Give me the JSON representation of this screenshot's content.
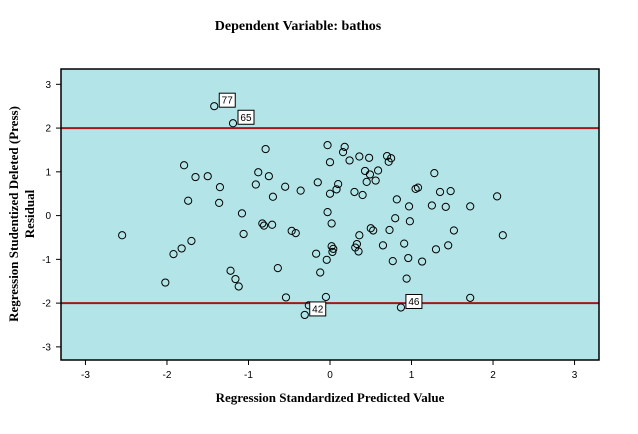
{
  "chart_data": {
    "type": "scatter",
    "title": "Dependent Variable: bathos",
    "xlabel": "Regression Standardized Predicted Value",
    "ylabel_lines": [
      "Regression Studentized Deleted (Press)",
      "Residual"
    ],
    "xlim": [
      -3.3,
      3.3
    ],
    "ylim": [
      -3.3,
      3.35
    ],
    "xticks": [
      -3,
      -2,
      -1,
      0,
      1,
      2,
      3
    ],
    "yticks": [
      3,
      2,
      1,
      0,
      -1,
      -2,
      -3
    ],
    "grid": false,
    "reference_lines": [
      2,
      -2
    ],
    "colors": {
      "plot_bg": "#b3e5e8",
      "reference_line": "#a01818",
      "marker_stroke": "#000000",
      "frame": "#000000"
    },
    "points": [
      [
        -2.55,
        -0.45
      ],
      [
        -2.02,
        -1.53
      ],
      [
        -1.92,
        -0.88
      ],
      [
        -1.82,
        -0.75
      ],
      [
        -1.79,
        1.15
      ],
      [
        -1.74,
        0.34
      ],
      [
        -1.7,
        -0.58
      ],
      [
        -1.65,
        0.88
      ],
      [
        -1.5,
        0.9
      ],
      [
        -1.35,
        0.65
      ],
      [
        -1.36,
        0.29
      ],
      [
        -1.22,
        -1.26
      ],
      [
        -1.16,
        -1.45
      ],
      [
        -1.12,
        -1.62
      ],
      [
        -1.08,
        0.05
      ],
      [
        -1.06,
        -0.42
      ],
      [
        -0.91,
        0.71
      ],
      [
        -0.88,
        0.99
      ],
      [
        -0.83,
        -0.18
      ],
      [
        -0.81,
        -0.23
      ],
      [
        -0.79,
        1.52
      ],
      [
        -0.75,
        0.9
      ],
      [
        -0.71,
        -0.21
      ],
      [
        -0.7,
        0.43
      ],
      [
        -0.64,
        -1.2
      ],
      [
        -0.55,
        0.66
      ],
      [
        -0.54,
        -1.87
      ],
      [
        -0.47,
        -0.35
      ],
      [
        -0.42,
        -0.4
      ],
      [
        -0.36,
        0.57
      ],
      [
        -0.31,
        -2.27
      ],
      [
        -0.26,
        -2.05
      ],
      [
        -0.17,
        -0.87
      ],
      [
        -0.15,
        0.76
      ],
      [
        -0.12,
        -1.3
      ],
      [
        -0.05,
        -1.86
      ],
      [
        -0.04,
        -1.01
      ],
      [
        -0.03,
        1.61
      ],
      [
        -0.03,
        0.08
      ],
      [
        0.0,
        1.22
      ],
      [
        0.0,
        0.5
      ],
      [
        0.02,
        -0.18
      ],
      [
        0.02,
        -0.7
      ],
      [
        0.03,
        -0.83
      ],
      [
        0.04,
        -0.76
      ],
      [
        0.08,
        0.6
      ],
      [
        0.1,
        0.72
      ],
      [
        0.16,
        1.45
      ],
      [
        0.18,
        1.57
      ],
      [
        0.24,
        1.26
      ],
      [
        0.3,
        0.54
      ],
      [
        0.31,
        -0.73
      ],
      [
        0.33,
        -0.65
      ],
      [
        0.35,
        -0.82
      ],
      [
        0.36,
        1.35
      ],
      [
        0.36,
        -0.45
      ],
      [
        0.4,
        0.47
      ],
      [
        0.43,
        1.02
      ],
      [
        0.45,
        0.77
      ],
      [
        0.48,
        1.32
      ],
      [
        0.49,
        0.94
      ],
      [
        0.5,
        -0.29
      ],
      [
        0.53,
        -0.34
      ],
      [
        0.56,
        0.8
      ],
      [
        0.59,
        1.03
      ],
      [
        0.65,
        -0.68
      ],
      [
        0.7,
        1.36
      ],
      [
        0.72,
        1.23
      ],
      [
        0.73,
        -0.33
      ],
      [
        0.75,
        1.31
      ],
      [
        0.77,
        -1.04
      ],
      [
        0.8,
        -0.06
      ],
      [
        0.82,
        0.37
      ],
      [
        0.87,
        -2.1
      ],
      [
        0.91,
        -0.64
      ],
      [
        0.94,
        -1.44
      ],
      [
        0.96,
        -0.97
      ],
      [
        0.97,
        0.21
      ],
      [
        0.98,
        -0.13
      ],
      [
        1.05,
        0.61
      ],
      [
        1.08,
        0.64
      ],
      [
        1.13,
        -1.05
      ],
      [
        1.25,
        0.23
      ],
      [
        1.28,
        0.97
      ],
      [
        1.3,
        -0.77
      ],
      [
        1.35,
        0.54
      ],
      [
        1.42,
        0.2
      ],
      [
        1.45,
        -0.68
      ],
      [
        1.48,
        0.56
      ],
      [
        1.52,
        -0.34
      ],
      [
        1.72,
        0.21
      ],
      [
        1.72,
        -1.88
      ],
      [
        2.05,
        0.44
      ],
      [
        2.12,
        -0.45
      ],
      [
        -1.42,
        2.5
      ],
      [
        -1.19,
        2.11
      ]
    ],
    "annotations": [
      {
        "label": "77",
        "x": -1.42,
        "y": 2.5,
        "side": "upper-right"
      },
      {
        "label": "65",
        "x": -1.19,
        "y": 2.11,
        "side": "upper-right"
      },
      {
        "label": "42",
        "x": -0.31,
        "y": -2.27,
        "side": "upper-right"
      },
      {
        "label": "46",
        "x": 0.87,
        "y": -2.1,
        "side": "upper-right"
      }
    ]
  }
}
